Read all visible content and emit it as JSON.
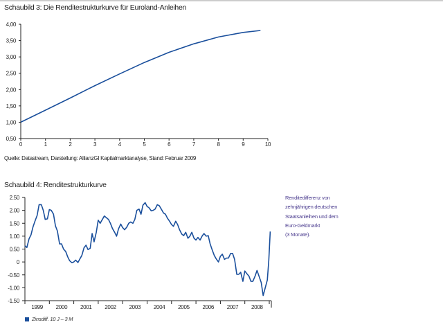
{
  "colors": {
    "line": "#1a4f9c",
    "axis": "#222222",
    "side_text": "#4a3b8e"
  },
  "chart_data": [
    {
      "type": "line",
      "title": "Schaubild 3: Die Renditestrukturkurve für Euroland-Anleihen",
      "xlim": [
        0,
        10
      ],
      "ylim": [
        0.5,
        4.0
      ],
      "xticks": [
        "0",
        "1",
        "2",
        "3",
        "4",
        "5",
        "6",
        "7",
        "8",
        "9",
        "10"
      ],
      "yticks": [
        "0,50",
        "1,00",
        "1,50",
        "2,00",
        "2,50",
        "3,00",
        "3,50",
        "4,00"
      ],
      "grid": false,
      "x": [
        0,
        1,
        2,
        3,
        4,
        5,
        6,
        7,
        8,
        9,
        9.7
      ],
      "y": [
        1.0,
        1.37,
        1.74,
        2.12,
        2.48,
        2.83,
        3.14,
        3.4,
        3.61,
        3.75,
        3.81
      ],
      "source": "Quelle: Datastream, Darstellung: AllianzGI Kapitalmarktanalyse, Stand: Februar 2009"
    },
    {
      "type": "line",
      "title": "Schaubild 4: Renditestrukturkurve",
      "ylim": [
        -1.5,
        2.5
      ],
      "yticks": [
        "-1.50",
        "-1.00",
        "-0.50",
        "0",
        "0.50",
        "1.00",
        "1.50",
        "2.00",
        "2.50"
      ],
      "xticks": [
        "1999",
        "2000",
        "2001",
        "2002",
        "2003",
        "2004",
        "2005",
        "2006",
        "2007",
        "2008"
      ],
      "xlim": [
        1999,
        2009.1
      ],
      "grid": false,
      "legend": "bottom-left",
      "series": [
        {
          "name": "Zinsdiff. 10 J – 3 M",
          "x": [
            1999.0,
            1999.08,
            1999.17,
            1999.25,
            1999.33,
            1999.42,
            1999.5,
            1999.58,
            1999.67,
            1999.75,
            1999.83,
            1999.92,
            2000.0,
            2000.08,
            2000.17,
            2000.25,
            2000.33,
            2000.42,
            2000.5,
            2000.58,
            2000.67,
            2000.75,
            2000.83,
            2000.92,
            2001.0,
            2001.08,
            2001.17,
            2001.25,
            2001.33,
            2001.42,
            2001.5,
            2001.58,
            2001.67,
            2001.75,
            2001.83,
            2001.92,
            2002.0,
            2002.08,
            2002.17,
            2002.25,
            2002.33,
            2002.42,
            2002.5,
            2002.58,
            2002.67,
            2002.75,
            2002.83,
            2002.92,
            2003.0,
            2003.08,
            2003.17,
            2003.25,
            2003.33,
            2003.42,
            2003.5,
            2003.58,
            2003.67,
            2003.75,
            2003.83,
            2003.92,
            2004.0,
            2004.08,
            2004.17,
            2004.25,
            2004.33,
            2004.42,
            2004.5,
            2004.58,
            2004.67,
            2004.75,
            2004.83,
            2004.92,
            2005.0,
            2005.08,
            2005.17,
            2005.25,
            2005.33,
            2005.42,
            2005.5,
            2005.58,
            2005.67,
            2005.75,
            2005.83,
            2005.92,
            2006.0,
            2006.08,
            2006.17,
            2006.25,
            2006.33,
            2006.42,
            2006.5,
            2006.58,
            2006.67,
            2006.75,
            2006.83,
            2006.92,
            2007.0,
            2007.08,
            2007.17,
            2007.25,
            2007.33,
            2007.42,
            2007.5,
            2007.58,
            2007.67,
            2007.75,
            2007.83,
            2007.92,
            2008.0,
            2008.08,
            2008.17,
            2008.25,
            2008.33,
            2008.42,
            2008.5,
            2008.58,
            2008.67,
            2008.75,
            2008.85,
            2008.92,
            2008.98,
            2009.04
          ],
          "y": [
            0.63,
            0.56,
            0.9,
            1.05,
            1.35,
            1.6,
            1.8,
            2.22,
            2.22,
            2.0,
            1.65,
            1.67,
            2.03,
            2.0,
            1.85,
            1.4,
            1.2,
            0.7,
            0.7,
            0.5,
            0.4,
            0.2,
            0.05,
            -0.03,
            0.0,
            0.07,
            -0.02,
            0.12,
            0.25,
            0.55,
            0.65,
            0.48,
            0.53,
            1.1,
            0.78,
            1.15,
            1.62,
            1.5,
            1.65,
            1.78,
            1.72,
            1.65,
            1.5,
            1.3,
            1.15,
            1.0,
            1.28,
            1.47,
            1.33,
            1.25,
            1.35,
            1.5,
            1.55,
            1.5,
            1.65,
            2.0,
            2.05,
            1.85,
            2.2,
            2.3,
            2.15,
            2.1,
            1.98,
            2.0,
            2.05,
            2.22,
            2.18,
            2.05,
            1.9,
            1.85,
            1.7,
            1.58,
            1.45,
            1.38,
            1.58,
            1.45,
            1.25,
            1.08,
            1.02,
            1.15,
            0.92,
            1.0,
            1.15,
            0.92,
            0.85,
            0.95,
            0.85,
            1.0,
            1.1,
            1.0,
            1.02,
            0.7,
            0.45,
            0.25,
            0.12,
            0.0,
            0.22,
            0.3,
            0.1,
            0.15,
            0.15,
            0.33,
            0.33,
            0.1,
            -0.48,
            -0.48,
            -0.4,
            -0.75,
            -0.35,
            -0.45,
            -0.55,
            -0.75,
            -0.75,
            -0.55,
            -0.33,
            -0.55,
            -0.8,
            -1.3,
            -0.95,
            -0.7,
            0.05,
            1.18
          ]
        }
      ],
      "side_note": [
        "Renditedifferenz von",
        "zehnjährigen deutschen",
        "Staatsanleihen und dem",
        "Euro-Geldmarkt",
        "(3 Monate)."
      ]
    }
  ]
}
